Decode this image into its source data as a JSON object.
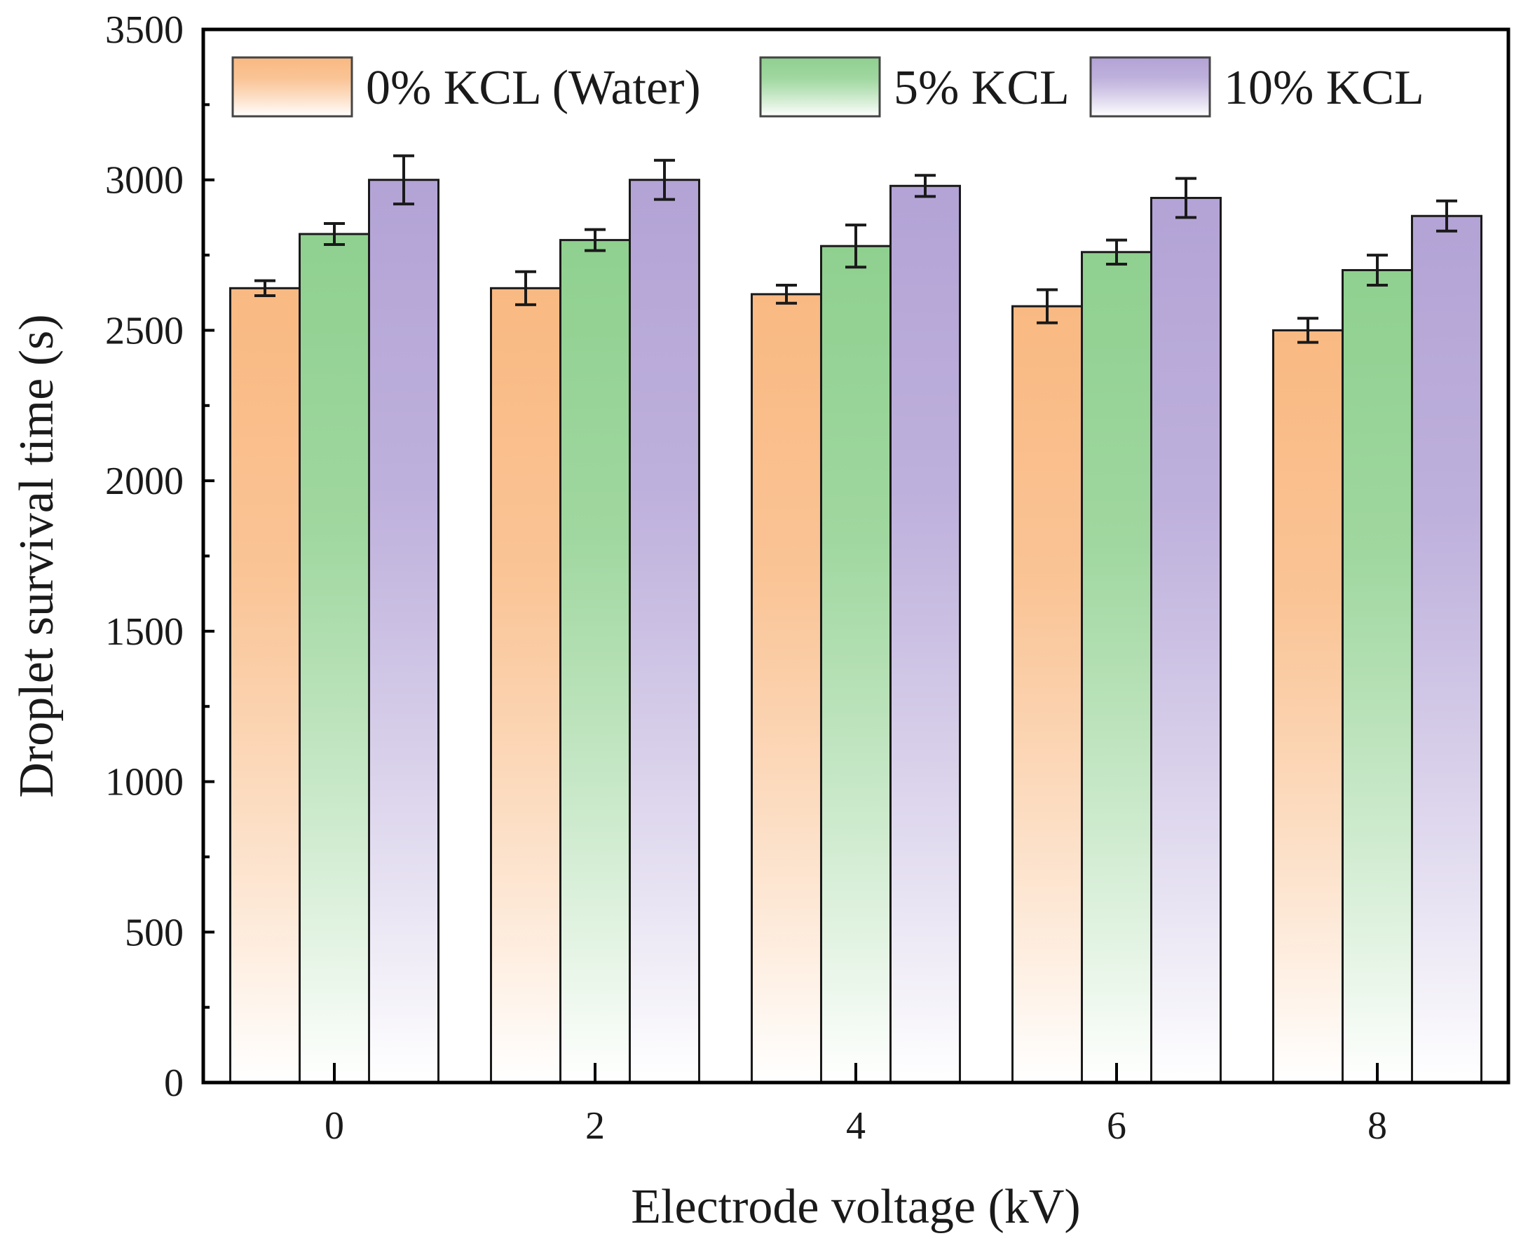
{
  "chart_data": {
    "type": "bar",
    "title": "",
    "xlabel": "Electrode voltage (kV)",
    "ylabel": "Droplet survival time (s)",
    "categories": [
      "0",
      "2",
      "4",
      "6",
      "8"
    ],
    "ylim": [
      0,
      3500
    ],
    "yticks": [
      0,
      500,
      1000,
      1500,
      2000,
      2500,
      3000,
      3500
    ],
    "yticks_labels": [
      "0",
      "500",
      "1000",
      "1500",
      "2000",
      "2500",
      "3000",
      "3500"
    ],
    "grid": false,
    "legend_position": "top",
    "series": [
      {
        "name": "0% KCL (Water)",
        "color": "#f9b982",
        "values": [
          2640,
          2640,
          2620,
          2580,
          2500
        ],
        "errors": [
          25,
          55,
          30,
          55,
          40
        ]
      },
      {
        "name": "5% KCL",
        "color": "#8fd08f",
        "values": [
          2820,
          2800,
          2780,
          2760,
          2700
        ],
        "errors": [
          35,
          35,
          70,
          40,
          50
        ]
      },
      {
        "name": "10% KCL",
        "color": "#b3a3d6",
        "values": [
          3000,
          3000,
          2980,
          2940,
          2880
        ],
        "errors": [
          80,
          65,
          35,
          65,
          50
        ]
      }
    ]
  }
}
